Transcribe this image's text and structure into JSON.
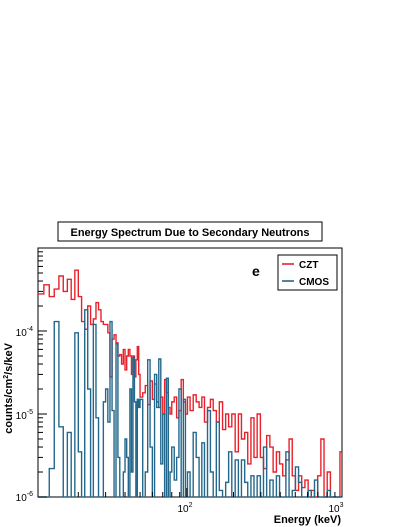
{
  "chart_data": {
    "type": "line",
    "title": "Energy Spectrum Due to Secondary Neutrons",
    "panel_label": "e",
    "xlabel": "Energy (keV)",
    "ylabel_parts": {
      "pre": "counts/cm",
      "sup": "2",
      "post": "/s/keV"
    },
    "xscale": "log",
    "yscale": "log",
    "xlim": [
      11,
      1000
    ],
    "ylim": [
      1e-06,
      0.001
    ],
    "grid": false,
    "legend_position": "top-right",
    "x_ticks": [
      {
        "base": "10",
        "exp": "2",
        "value": 100
      },
      {
        "base": "10",
        "exp": "3",
        "value": 1000
      }
    ],
    "y_ticks": [
      {
        "base": "10",
        "exp": "-6",
        "value": 1e-06
      },
      {
        "base": "10",
        "exp": "-5",
        "value": 1e-05
      },
      {
        "base": "10",
        "exp": "-4",
        "value": 0.0001
      }
    ],
    "series": [
      {
        "name": "CZT",
        "color": "#e8222a",
        "points": [
          [
            11,
            0.00028
          ],
          [
            12,
            0.00036
          ],
          [
            13,
            0.00026
          ],
          [
            14,
            0.00032
          ],
          [
            15,
            0.00046
          ],
          [
            16,
            0.0003
          ],
          [
            17,
            0.00042
          ],
          [
            18,
            0.00024
          ],
          [
            19,
            0.00054
          ],
          [
            20,
            0.00026
          ],
          [
            21,
            0.00013
          ],
          [
            22,
            0.000105
          ],
          [
            23,
            0.0002
          ],
          [
            24,
            0.00012
          ],
          [
            25,
            0.00014
          ],
          [
            26,
            0.00022
          ],
          [
            27,
            0.00018
          ],
          [
            28,
            0.00013
          ],
          [
            29,
            0.00012
          ],
          [
            30,
            0.00012
          ],
          [
            31,
            9.5e-05
          ],
          [
            32,
            2.8e-05
          ],
          [
            33,
            8e-05
          ],
          [
            34,
            9e-05
          ],
          [
            35,
            7.2e-05
          ],
          [
            36,
            5e-05
          ],
          [
            37,
            5.2e-05
          ],
          [
            38,
            4e-05
          ],
          [
            39,
            6e-05
          ],
          [
            40,
            3.4e-05
          ],
          [
            41,
            5e-05
          ],
          [
            42,
            6e-05
          ],
          [
            43,
            5e-05
          ],
          [
            44,
            3e-05
          ],
          [
            45,
            5e-05
          ],
          [
            46,
            2.8e-05
          ],
          [
            47,
            4.5e-05
          ],
          [
            48,
            6.5e-05
          ],
          [
            49,
            3e-05
          ],
          [
            50,
            1.6e-05
          ],
          [
            52,
            1.8e-05
          ],
          [
            54,
            2.2e-05
          ],
          [
            56,
            1.3e-05
          ],
          [
            58,
            2.5e-05
          ],
          [
            60,
            1.5e-05
          ],
          [
            62,
            2.3e-05
          ],
          [
            64,
            1.4e-05
          ],
          [
            66,
            1.2e-05
          ],
          [
            68,
            1.6e-05
          ],
          [
            70,
            1e-05
          ],
          [
            72,
            2.6e-05
          ],
          [
            74,
            1.8e-05
          ],
          [
            76,
            1.2e-05
          ],
          [
            78,
            1e-05
          ],
          [
            80,
            1.4e-05
          ],
          [
            83,
            1.6e-05
          ],
          [
            86,
            9e-06
          ],
          [
            89,
            1.1e-05
          ],
          [
            92,
            2.6e-05
          ],
          [
            95,
            1.4e-05
          ],
          [
            98,
            1e-05
          ],
          [
            101,
            1.6e-05
          ],
          [
            105,
            1.1e-05
          ],
          [
            110,
            1.7e-05
          ],
          [
            115,
            1.4e-05
          ],
          [
            120,
            1.2e-05
          ],
          [
            125,
            1.6e-05
          ],
          [
            130,
            8e-06
          ],
          [
            136,
            1.2e-05
          ],
          [
            142,
            1.5e-05
          ],
          [
            148,
            1.1e-05
          ],
          [
            155,
            8e-06
          ],
          [
            162,
            1.4e-05
          ],
          [
            170,
            6.5e-06
          ],
          [
            178,
            1e-05
          ],
          [
            186,
            7e-06
          ],
          [
            195,
            1e-05
          ],
          [
            205,
            3.5e-06
          ],
          [
            215,
            1e-05
          ],
          [
            225,
            5e-06
          ],
          [
            236,
            6e-06
          ],
          [
            247,
            2.5e-06
          ],
          [
            259,
            9e-06
          ],
          [
            271,
            3e-06
          ],
          [
            284,
            1e-05
          ],
          [
            298,
            3e-06
          ],
          [
            312,
            2.2e-06
          ],
          [
            327,
            5.5e-06
          ],
          [
            343,
            4e-06
          ],
          [
            360,
            2e-06
          ],
          [
            378,
            3.5e-06
          ],
          [
            396,
            2.5e-06
          ],
          [
            415,
            1.8e-06
          ],
          [
            435,
            2.8e-06
          ],
          [
            456,
            5e-06
          ],
          [
            478,
            1.8e-06
          ],
          [
            501,
            1.2e-06
          ],
          [
            525,
            1.8e-06
          ],
          [
            550,
            1.3e-06
          ],
          [
            577,
            1.6e-06
          ],
          [
            605,
            1e-06
          ],
          [
            634,
            1.2e-06
          ],
          [
            665,
            1e-06
          ],
          [
            697,
            1.8e-06
          ],
          [
            731,
            5e-06
          ],
          [
            766,
            1e-06
          ],
          [
            803,
            2e-06
          ],
          [
            842,
            1e-06
          ],
          [
            882,
            1e-06
          ],
          [
            925,
            1e-06
          ],
          [
            970,
            3.5e-06
          ]
        ]
      },
      {
        "name": "CMOS",
        "color": "#23688c",
        "points": [
          [
            11,
            1e-06
          ],
          [
            12,
            1e-06
          ],
          [
            13,
            2.2e-06
          ],
          [
            14,
            0.00013
          ],
          [
            15,
            7e-06
          ],
          [
            16,
            1e-06
          ],
          [
            17,
            6e-06
          ],
          [
            18,
            1e-06
          ],
          [
            19,
            9.5e-05
          ],
          [
            20,
            3.5e-06
          ],
          [
            21,
            1e-06
          ],
          [
            22,
            0.00018
          ],
          [
            23,
            2e-05
          ],
          [
            24,
            1e-06
          ],
          [
            25,
            0.00012
          ],
          [
            26,
            9e-06
          ],
          [
            27,
            1e-06
          ],
          [
            28,
            1e-06
          ],
          [
            29,
            1.4e-05
          ],
          [
            30,
            2e-05
          ],
          [
            31,
            8e-06
          ],
          [
            32,
            0.00013
          ],
          [
            33,
            1.1e-05
          ],
          [
            34,
            1e-06
          ],
          [
            35,
            7e-05
          ],
          [
            36,
            3e-06
          ],
          [
            37,
            1e-06
          ],
          [
            38,
            1e-06
          ],
          [
            39,
            2e-06
          ],
          [
            40,
            5e-06
          ],
          [
            41,
            3e-06
          ],
          [
            42,
            1e-06
          ],
          [
            43,
            2e-05
          ],
          [
            44,
            2e-06
          ],
          [
            45,
            4.8e-05
          ],
          [
            46,
            1.4e-05
          ],
          [
            47,
            1e-06
          ],
          [
            48,
            1.5e-05
          ],
          [
            49,
            1.2e-05
          ],
          [
            50,
            1.5e-05
          ],
          [
            52,
            1e-06
          ],
          [
            54,
            2e-06
          ],
          [
            56,
            4.5e-05
          ],
          [
            58,
            4e-06
          ],
          [
            60,
            1e-06
          ],
          [
            62,
            3e-05
          ],
          [
            64,
            1.2e-05
          ],
          [
            66,
            4.6e-05
          ],
          [
            68,
            2.5e-06
          ],
          [
            70,
            1e-05
          ],
          [
            72,
            1e-06
          ],
          [
            74,
            2.7e-05
          ],
          [
            76,
            1e-06
          ],
          [
            78,
            2e-06
          ],
          [
            80,
            4e-06
          ],
          [
            83,
            1.6e-06
          ],
          [
            86,
            3e-06
          ],
          [
            89,
            2e-05
          ],
          [
            92,
            1e-06
          ],
          [
            95,
            1.5e-05
          ],
          [
            98,
            1e-06
          ],
          [
            101,
            2e-06
          ],
          [
            105,
            1e-06
          ],
          [
            110,
            6e-06
          ],
          [
            115,
            3e-06
          ],
          [
            120,
            1e-06
          ],
          [
            125,
            4.5e-06
          ],
          [
            130,
            1e-06
          ],
          [
            136,
            1.1e-05
          ],
          [
            142,
            2e-06
          ],
          [
            148,
            1e-06
          ],
          [
            155,
            8e-06
          ],
          [
            162,
            1.2e-06
          ],
          [
            170,
            1e-06
          ],
          [
            178,
            1.5e-06
          ],
          [
            186,
            3.5e-06
          ],
          [
            195,
            1e-06
          ],
          [
            205,
            2.8e-06
          ],
          [
            215,
            1e-06
          ],
          [
            225,
            2.8e-06
          ],
          [
            236,
            1.5e-06
          ],
          [
            247,
            1e-06
          ],
          [
            259,
            1.8e-06
          ],
          [
            271,
            1e-06
          ],
          [
            284,
            1.8e-06
          ],
          [
            298,
            1e-06
          ],
          [
            312,
            4e-06
          ],
          [
            327,
            1e-06
          ],
          [
            343,
            1.6e-06
          ],
          [
            360,
            1e-06
          ],
          [
            378,
            1.8e-06
          ],
          [
            396,
            1e-06
          ],
          [
            415,
            1e-06
          ],
          [
            435,
            3.5e-06
          ],
          [
            456,
            1e-06
          ],
          [
            478,
            1.2e-06
          ],
          [
            501,
            2.3e-06
          ],
          [
            525,
            1.5e-06
          ],
          [
            550,
            1e-06
          ],
          [
            577,
            1e-06
          ],
          [
            605,
            1.2e-06
          ],
          [
            634,
            1e-06
          ],
          [
            665,
            1.6e-06
          ],
          [
            697,
            1e-06
          ],
          [
            731,
            1e-06
          ],
          [
            766,
            1e-06
          ],
          [
            803,
            1.2e-06
          ],
          [
            842,
            1e-06
          ],
          [
            882,
            1e-06
          ],
          [
            925,
            1e-06
          ],
          [
            970,
            1e-06
          ]
        ]
      }
    ]
  }
}
